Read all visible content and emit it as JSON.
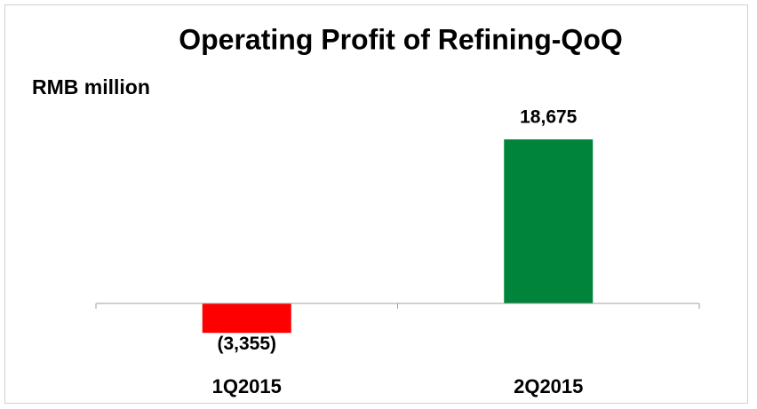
{
  "chart_data": {
    "type": "bar",
    "title": "Operating Profit of Refining-QoQ",
    "y_label": "RMB million",
    "categories": [
      "1Q2015",
      "2Q2015"
    ],
    "values": [
      -3355,
      18675
    ],
    "value_labels": [
      "(3,355)",
      "18,675"
    ],
    "colors": [
      "#ff0000",
      "#00843c"
    ],
    "ylim": [
      -6000,
      20000
    ]
  }
}
